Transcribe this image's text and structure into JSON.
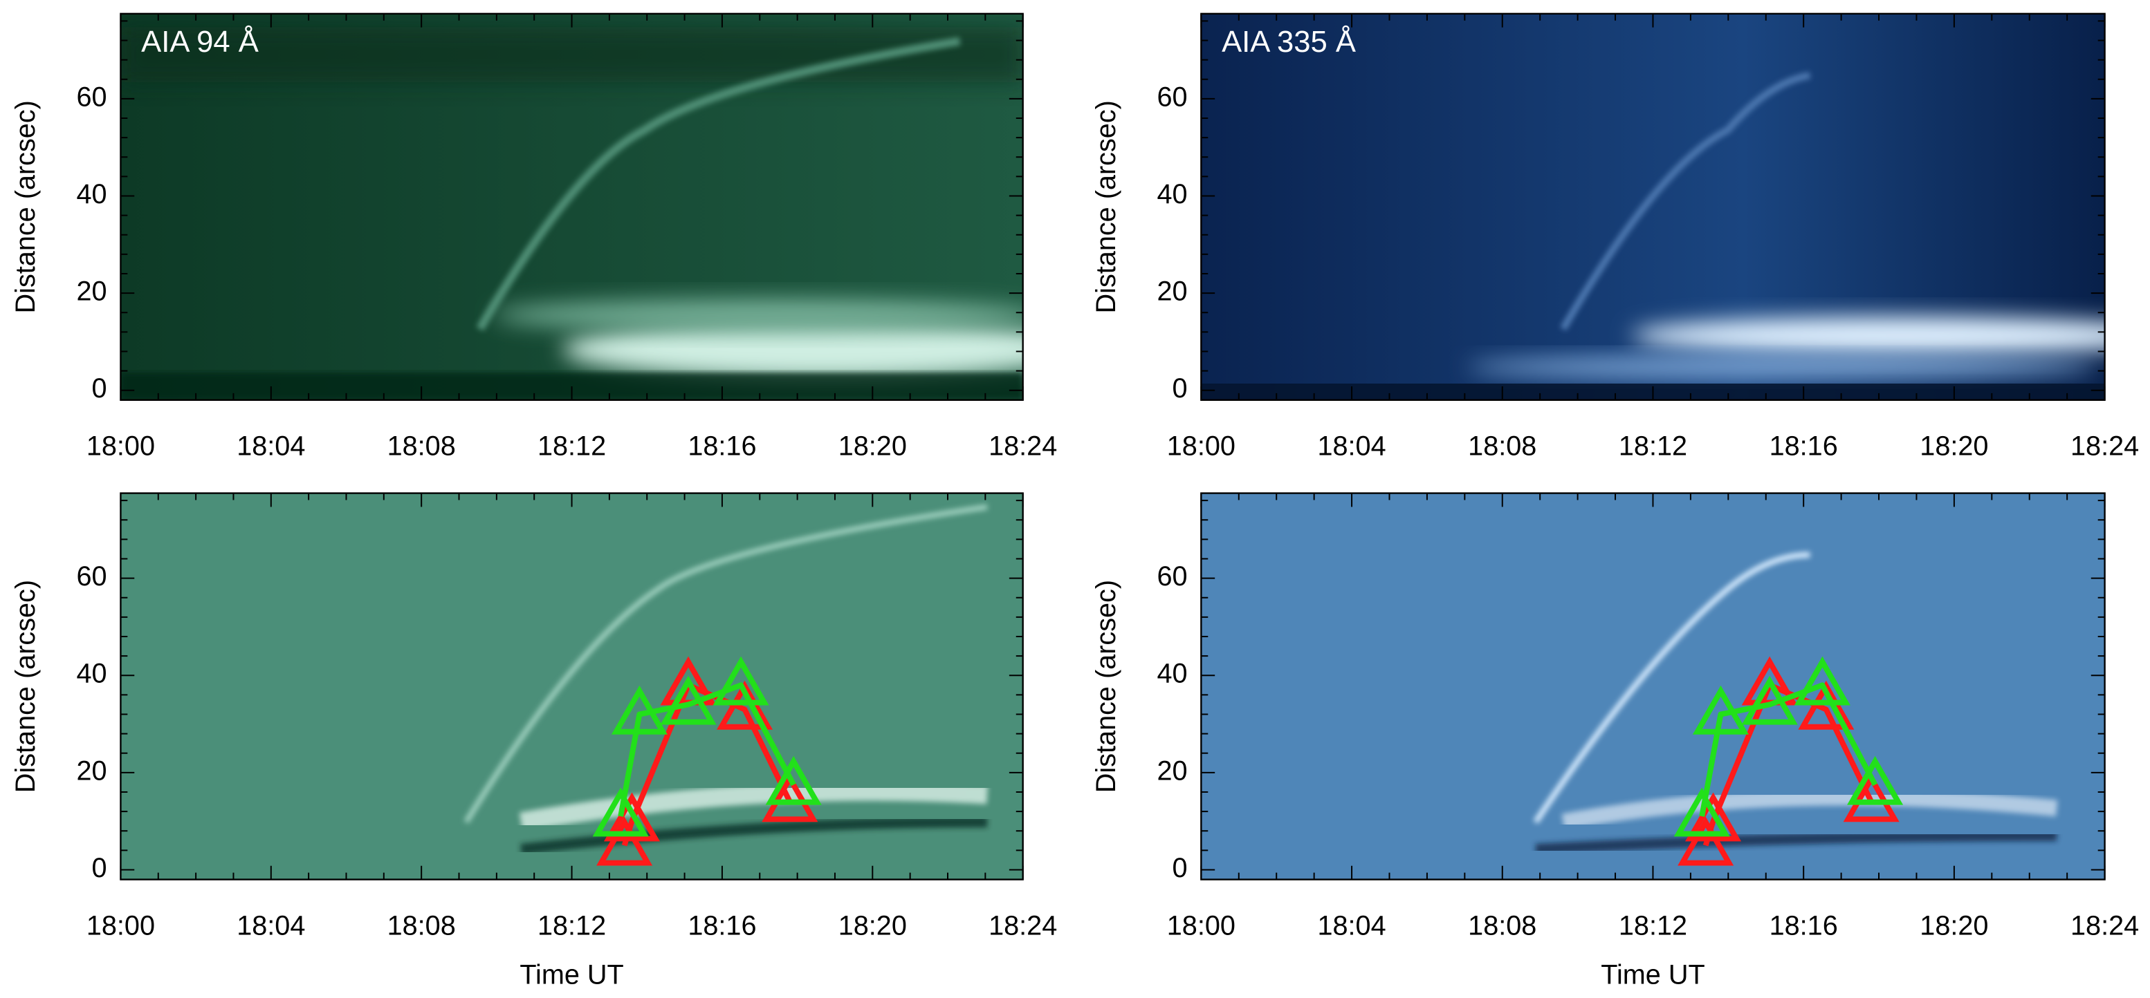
{
  "chart_data": [
    {
      "type": "image",
      "title": "AIA 94 Å",
      "ylabel": "Distance (arcsec)",
      "xlim": [
        0,
        24
      ],
      "xticks": [
        {
          "value": 0,
          "label": "18:00"
        },
        {
          "value": 4,
          "label": "18:04"
        },
        {
          "value": 8,
          "label": "18:08"
        },
        {
          "value": 12,
          "label": "18:12"
        },
        {
          "value": 16,
          "label": "18:16"
        },
        {
          "value": 20,
          "label": "18:20"
        },
        {
          "value": 24,
          "label": "18:24"
        }
      ],
      "ylim": [
        -2,
        77.5
      ],
      "yticks": [
        0,
        20,
        40,
        60
      ]
    },
    {
      "type": "image",
      "title": "AIA 335 Å",
      "ylabel": "Distance (arcsec)",
      "xlim": [
        0,
        24
      ],
      "xticks": [
        {
          "value": 0,
          "label": "18:00"
        },
        {
          "value": 4,
          "label": "18:04"
        },
        {
          "value": 8,
          "label": "18:08"
        },
        {
          "value": 12,
          "label": "18:12"
        },
        {
          "value": 16,
          "label": "18:16"
        },
        {
          "value": 20,
          "label": "18:20"
        },
        {
          "value": 24,
          "label": "18:24"
        }
      ],
      "ylim": [
        -2,
        77.5
      ],
      "yticks": [
        0,
        20,
        40,
        60
      ]
    },
    {
      "type": "image",
      "ylabel": "Distance (arcsec)",
      "xlabel": "Time UT",
      "xlim": [
        0,
        24
      ],
      "xticks": [
        {
          "value": 0,
          "label": "18:00"
        },
        {
          "value": 4,
          "label": "18:04"
        },
        {
          "value": 8,
          "label": "18:08"
        },
        {
          "value": 12,
          "label": "18:12"
        },
        {
          "value": 16,
          "label": "18:16"
        },
        {
          "value": 20,
          "label": "18:20"
        },
        {
          "value": 24,
          "label": "18:24"
        }
      ],
      "ylim": [
        -2,
        77.5
      ],
      "yticks": [
        0,
        20,
        40,
        60
      ],
      "series": [
        {
          "color": "#ff1a1a",
          "x": [
            13.4,
            13.6,
            15.1,
            16.6,
            17.8
          ],
          "values": [
            5,
            10,
            38,
            33,
            14
          ]
        },
        {
          "color": "#22e01a",
          "x": [
            13.3,
            13.8,
            15.1,
            16.5,
            17.9
          ],
          "values": [
            11,
            32,
            34,
            38,
            17.5
          ]
        }
      ]
    },
    {
      "type": "image",
      "ylabel": "Distance (arcsec)",
      "xlabel": "Time UT",
      "xlim": [
        0,
        24
      ],
      "xticks": [
        {
          "value": 0,
          "label": "18:00"
        },
        {
          "value": 4,
          "label": "18:04"
        },
        {
          "value": 8,
          "label": "18:08"
        },
        {
          "value": 12,
          "label": "18:12"
        },
        {
          "value": 16,
          "label": "18:16"
        },
        {
          "value": 20,
          "label": "18:20"
        },
        {
          "value": 24,
          "label": "18:24"
        }
      ],
      "ylim": [
        -2,
        77.5
      ],
      "yticks": [
        0,
        20,
        40,
        60
      ],
      "series": [
        {
          "color": "#ff1a1a",
          "x": [
            13.4,
            13.6,
            15.1,
            16.6,
            17.8
          ],
          "values": [
            5,
            10,
            38,
            33,
            14
          ]
        },
        {
          "color": "#22e01a",
          "x": [
            13.3,
            13.8,
            15.1,
            16.5,
            17.9
          ],
          "values": [
            11,
            32,
            34,
            38,
            17.5
          ]
        }
      ]
    }
  ]
}
